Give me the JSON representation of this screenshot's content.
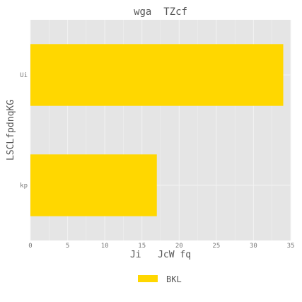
{
  "chart_data": {
    "type": "bar",
    "orientation": "horizontal",
    "title": "wga  TZcf",
    "xlabel": "Ji   JcW fq",
    "ylabel": "LSCLfpdnqKG",
    "categories": [
      "Ui",
      "kp"
    ],
    "series": [
      {
        "name": "BKL",
        "values": [
          34,
          17
        ]
      }
    ],
    "xlim": [
      0,
      35
    ],
    "xticks": [
      0,
      5,
      10,
      15,
      20,
      25,
      30,
      35
    ],
    "grid": true,
    "legend_position": "bottom-center",
    "colors": {
      "bar": "#FFD700",
      "plot_background": "#E5E5E5",
      "grid": "#F2F2F2",
      "text": "#555555",
      "tick_text": "#777777"
    }
  }
}
